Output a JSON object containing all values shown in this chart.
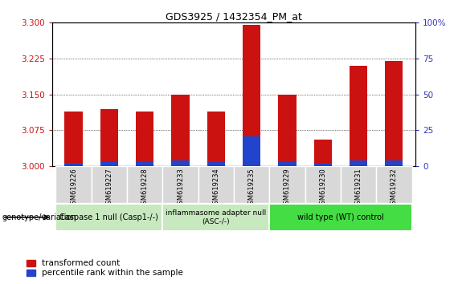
{
  "title": "GDS3925 / 1432354_PM_at",
  "samples": [
    "GSM619226",
    "GSM619227",
    "GSM619228",
    "GSM619233",
    "GSM619234",
    "GSM619235",
    "GSM619229",
    "GSM619230",
    "GSM619231",
    "GSM619232"
  ],
  "transformed_count": [
    3.115,
    3.12,
    3.115,
    3.15,
    3.115,
    3.295,
    3.15,
    3.055,
    3.21,
    3.22
  ],
  "blue_height": [
    0.006,
    0.008,
    0.008,
    0.012,
    0.01,
    0.062,
    0.008,
    0.006,
    0.012,
    0.012
  ],
  "ylim_left": [
    3.0,
    3.3
  ],
  "ylim_right": [
    0,
    100
  ],
  "yticks_left": [
    3.0,
    3.075,
    3.15,
    3.225,
    3.3
  ],
  "yticks_right": [
    0,
    25,
    50,
    75,
    100
  ],
  "bar_color_red": "#cc1111",
  "bar_color_blue": "#2244cc",
  "group_labels": [
    "Caspase 1 null (Casp1-/-)",
    "inflammasome adapter null\n(ASC-/-)",
    "wild type (WT) control"
  ],
  "group_colors": [
    "#c8e8c0",
    "#c8e8c0",
    "#44cc44"
  ],
  "group_boundaries": [
    0,
    3,
    6,
    10
  ],
  "legend_red": "transformed count",
  "legend_blue": "percentile rank within the sample",
  "left_tick_color": "#cc1111",
  "right_tick_color": "#3333bb",
  "bar_width": 0.5
}
